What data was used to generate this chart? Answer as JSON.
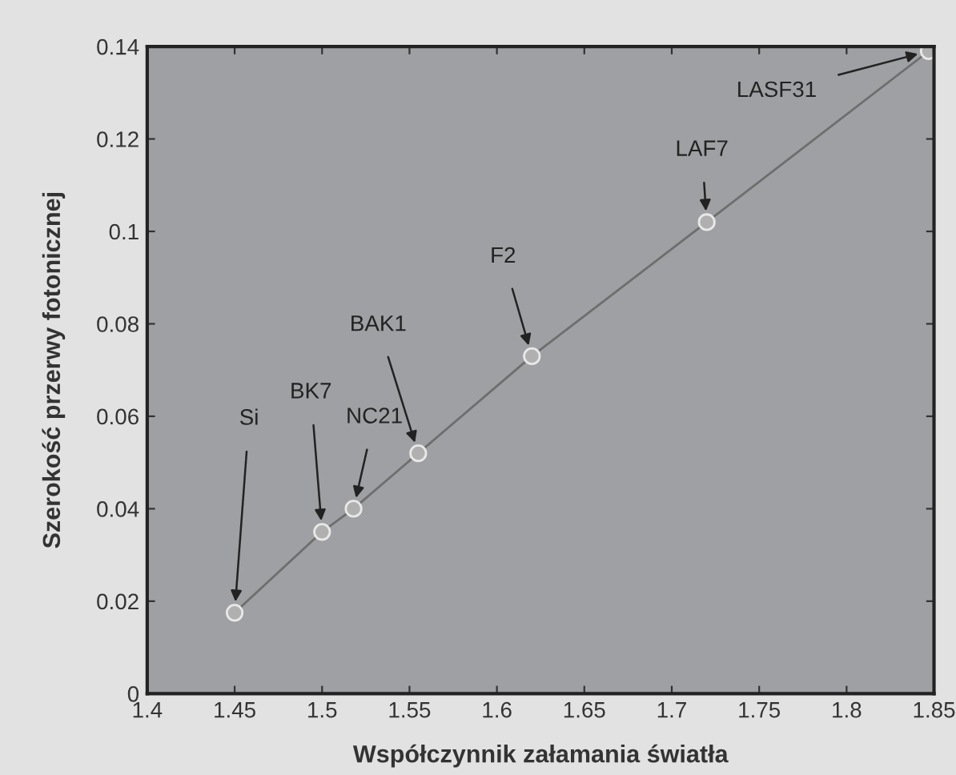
{
  "chart_data": {
    "type": "line",
    "xlabel": "Współczynnik załamania światła",
    "ylabel": "Szerokość przerwy fotonicznej",
    "x": [
      1.45,
      1.5,
      1.518,
      1.555,
      1.62,
      1.72,
      1.847
    ],
    "series": [
      {
        "color": "#6e6e6e",
        "values": [
          0.0175,
          0.035,
          0.04,
          0.052,
          0.073,
          0.102,
          0.139
        ]
      }
    ],
    "marker": "circle",
    "line_style": "solid",
    "xlim": [
      1.4,
      1.85
    ],
    "ylim": [
      0,
      0.14
    ],
    "xticks": [
      1.4,
      1.45,
      1.5,
      1.55,
      1.6,
      1.65,
      1.7,
      1.75,
      1.8,
      1.85
    ],
    "yticks": [
      0,
      0.02,
      0.04,
      0.06,
      0.08,
      0.1,
      0.12,
      0.14
    ],
    "grid": false,
    "annotations": [
      {
        "text": "Si",
        "x": 1.45,
        "y": 0.0175
      },
      {
        "text": "BK7",
        "x": 1.5,
        "y": 0.035
      },
      {
        "text": "NC21",
        "x": 1.518,
        "y": 0.04
      },
      {
        "text": "BAK1",
        "x": 1.555,
        "y": 0.052
      },
      {
        "text": "F2",
        "x": 1.62,
        "y": 0.073
      },
      {
        "text": "LAF7",
        "x": 1.72,
        "y": 0.102
      },
      {
        "text": "LASF31",
        "x": 1.847,
        "y": 0.139
      }
    ]
  }
}
